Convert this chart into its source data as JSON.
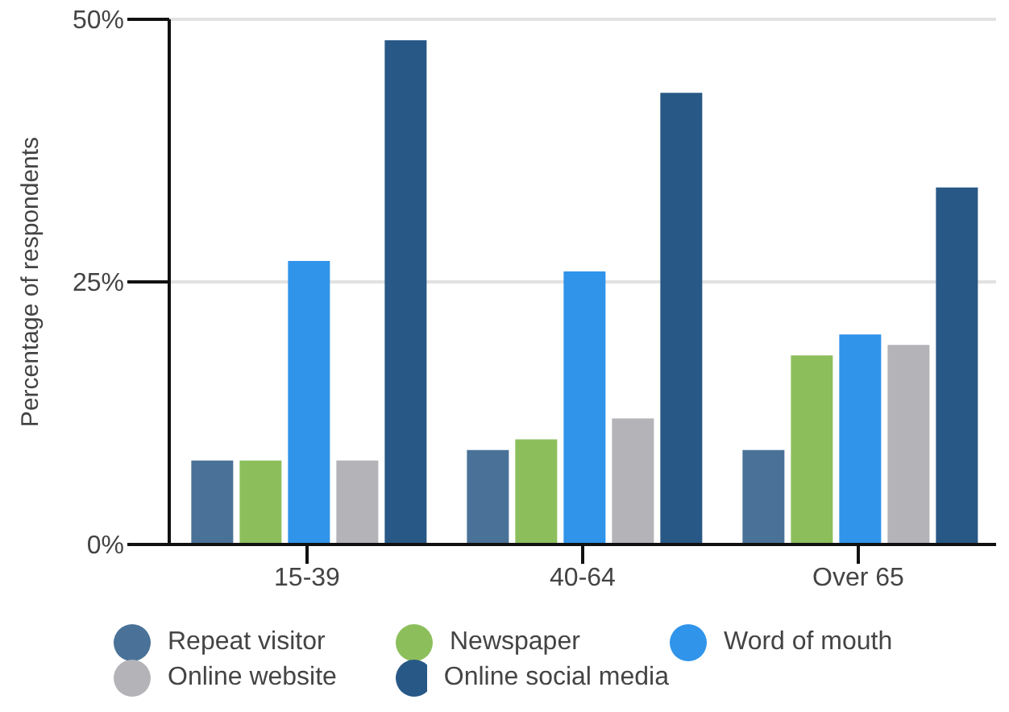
{
  "chart_data": {
    "type": "bar",
    "ylabel": "Percentage of respondents",
    "categories": [
      "15-39",
      "40-64",
      "Over 65"
    ],
    "series": [
      {
        "name": "Repeat visitor",
        "color": "#4a7298",
        "values": [
          8,
          9,
          9
        ]
      },
      {
        "name": "Newspaper",
        "color": "#8cbf5c",
        "values": [
          8,
          10,
          18
        ]
      },
      {
        "name": "Word of mouth",
        "color": "#3094ea",
        "values": [
          27,
          26,
          20
        ]
      },
      {
        "name": "Online website",
        "color": "#b4b3b8",
        "values": [
          8,
          12,
          19
        ]
      },
      {
        "name": "Online social media",
        "color": "#285886",
        "values": [
          48,
          43,
          34
        ]
      }
    ],
    "ylim": [
      0,
      50
    ],
    "yticks": [
      {
        "value": 0,
        "label": "0%"
      },
      {
        "value": 25,
        "label": "25%"
      },
      {
        "value": 50,
        "label": "50%"
      }
    ],
    "grid": "y",
    "legend": "bottom"
  }
}
